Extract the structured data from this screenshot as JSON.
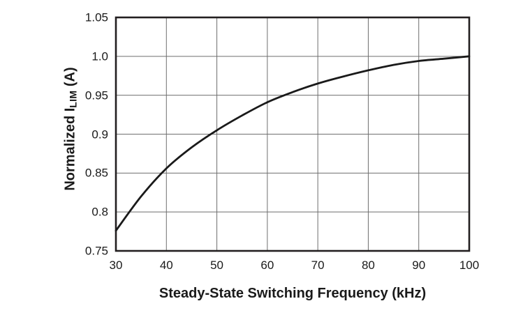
{
  "chart_data": {
    "type": "line",
    "title": "",
    "xlabel": "Steady-State Switching Frequency (kHz)",
    "ylabel": "Normalized ILIM (A)",
    "ylabel_parts": {
      "main": "Normalized I",
      "sub": "LIM",
      "unit": " (A)"
    },
    "xlim": [
      30,
      100
    ],
    "ylim": [
      0.75,
      1.05
    ],
    "x_ticks": [
      30,
      40,
      50,
      60,
      70,
      80,
      90,
      100
    ],
    "x_tick_labels": [
      "30",
      "40",
      "50",
      "60",
      "70",
      "80",
      "90",
      "100"
    ],
    "y_ticks": [
      1.05,
      1.0,
      0.95,
      0.9,
      0.85,
      0.8,
      0.75
    ],
    "y_tick_labels": [
      "1.05",
      "1.0",
      "0.95",
      "0.9",
      "0.85",
      "0.8",
      "0.75"
    ],
    "grid": true,
    "legend": false,
    "x": [
      30,
      35,
      40,
      45,
      50,
      55,
      60,
      65,
      70,
      75,
      80,
      85,
      90,
      95,
      100
    ],
    "series": [
      {
        "name": "Normalized ILIM",
        "values": [
          0.776,
          0.82,
          0.856,
          0.883,
          0.905,
          0.924,
          0.941,
          0.954,
          0.965,
          0.974,
          0.982,
          0.989,
          0.994,
          0.997,
          1.0
        ]
      }
    ],
    "colors": {
      "curve": "#1a1a1a",
      "grid": "#6e6e6e",
      "border": "#231f20",
      "background": "#ffffff",
      "text": "#1a1a1a"
    }
  }
}
